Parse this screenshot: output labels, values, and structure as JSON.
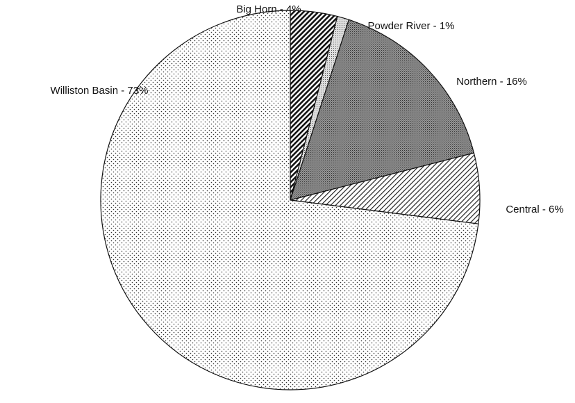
{
  "chart_data": {
    "type": "pie",
    "value_labels": [
      "Big Horn - 4%",
      "Powder River - 1%",
      "Northern - 16%",
      "Central - 6%",
      "Williston Basin - 73%"
    ],
    "values": [
      4,
      1,
      16,
      6,
      73
    ]
  }
}
